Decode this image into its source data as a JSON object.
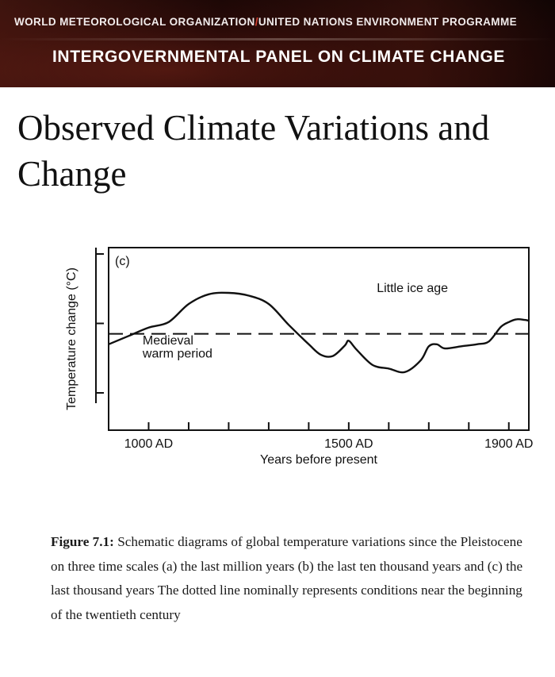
{
  "header": {
    "org_left": "WORLD METEOROLOGICAL ORGANIZATION",
    "org_separator": "/",
    "org_right": "UNITED NATIONS ENVIRONMENT PROGRAMME",
    "panel": "INTERGOVERNMENTAL PANEL ON CLIMATE CHANGE"
  },
  "page_title": "Observed Climate Variations and Change",
  "chart_data": {
    "type": "line",
    "panel_label": "(c)",
    "xlabel": "Years before present",
    "ylabel": "Temperature change (°C)",
    "xlim": [
      900,
      1950
    ],
    "ylim": [
      -1,
      1
    ],
    "x_tick_labels": [
      {
        "x": 1000,
        "label": "1000 AD"
      },
      {
        "x": 1500,
        "label": "1500 AD"
      },
      {
        "x": 1900,
        "label": "1900 AD"
      }
    ],
    "x_minor_ticks": [
      1000,
      1100,
      1200,
      1300,
      1400,
      1500,
      1600,
      1700,
      1800,
      1900
    ],
    "y_ticks": [
      -1,
      0,
      1
    ],
    "reference_line": {
      "y": -0.15,
      "style": "dashed"
    },
    "series": [
      {
        "x": [
          900,
          950,
          1000,
          1050,
          1100,
          1150,
          1200,
          1250,
          1300,
          1350,
          1400,
          1430,
          1460,
          1490,
          1500,
          1520,
          1560,
          1600,
          1640,
          1680,
          1700,
          1720,
          1740,
          1780,
          1820,
          1850,
          1880,
          1900,
          1920,
          1940,
          1950
        ],
        "y": [
          -0.3,
          -0.18,
          -0.06,
          0.02,
          0.28,
          0.42,
          0.44,
          0.4,
          0.28,
          -0.02,
          -0.3,
          -0.45,
          -0.47,
          -0.32,
          -0.25,
          -0.38,
          -0.6,
          -0.65,
          -0.7,
          -0.53,
          -0.33,
          -0.3,
          -0.36,
          -0.33,
          -0.3,
          -0.26,
          -0.05,
          0.02,
          0.06,
          0.05,
          0.04
        ]
      }
    ],
    "annotations": [
      {
        "text": "Little ice age",
        "x": 1570,
        "y": 0.45
      },
      {
        "text": "Medieval",
        "x": 985,
        "y": -0.3
      },
      {
        "text": "warm period",
        "x": 985,
        "y": -0.49
      }
    ]
  },
  "caption": {
    "label": "Figure 7.1:",
    "text": "Schematic diagrams of global temperature variations since the Pleistocene on three time scales (a) the last million years (b) the last ten thousand years and (c) the last thousand years The dotted line nominally represents conditions near the beginning of the twentieth century"
  }
}
